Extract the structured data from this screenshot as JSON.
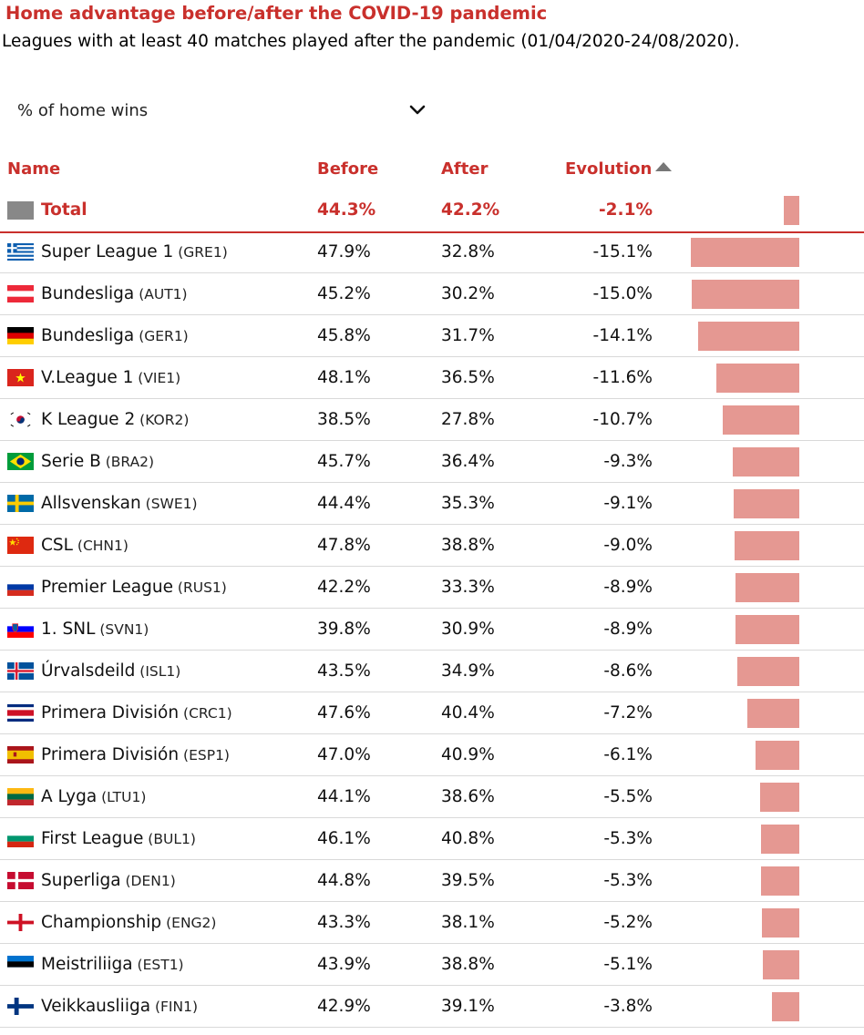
{
  "title": "Home advantage before/after the COVID-19 pandemic",
  "subtitle": "Leagues with at least 40 matches played after the pandemic (01/04/2020-24/08/2020).",
  "metric_select": {
    "value": "% of home wins",
    "icon": "chevron-down-icon"
  },
  "colors": {
    "accent": "#c9302c",
    "bar": "#e59892",
    "total_swatch": "#888888"
  },
  "columns": {
    "name": "Name",
    "before": "Before",
    "after": "After",
    "evolution": "Evolution",
    "sort_icon": "sort-ascending-icon"
  },
  "total": {
    "name": "Total",
    "before": "44.3%",
    "after": "42.2%",
    "evolution": "-2.1%"
  },
  "leagues": [
    {
      "flag": "gre",
      "name": "Super League 1",
      "code": "(GRE1)",
      "before": "47.9%",
      "after": "32.8%",
      "evolution": "-15.1%"
    },
    {
      "flag": "aut",
      "name": "Bundesliga",
      "code": "(AUT1)",
      "before": "45.2%",
      "after": "30.2%",
      "evolution": "-15.0%"
    },
    {
      "flag": "ger",
      "name": "Bundesliga",
      "code": "(GER1)",
      "before": "45.8%",
      "after": "31.7%",
      "evolution": "-14.1%"
    },
    {
      "flag": "vie",
      "name": "V.League 1",
      "code": "(VIE1)",
      "before": "48.1%",
      "after": "36.5%",
      "evolution": "-11.6%"
    },
    {
      "flag": "kor",
      "name": "K League 2",
      "code": "(KOR2)",
      "before": "38.5%",
      "after": "27.8%",
      "evolution": "-10.7%"
    },
    {
      "flag": "bra",
      "name": "Serie B",
      "code": "(BRA2)",
      "before": "45.7%",
      "after": "36.4%",
      "evolution": "-9.3%"
    },
    {
      "flag": "swe",
      "name": "Allsvenskan",
      "code": "(SWE1)",
      "before": "44.4%",
      "after": "35.3%",
      "evolution": "-9.1%"
    },
    {
      "flag": "chn",
      "name": "CSL",
      "code": "(CHN1)",
      "before": "47.8%",
      "after": "38.8%",
      "evolution": "-9.0%"
    },
    {
      "flag": "rus",
      "name": "Premier League",
      "code": "(RUS1)",
      "before": "42.2%",
      "after": "33.3%",
      "evolution": "-8.9%"
    },
    {
      "flag": "svn",
      "name": "1. SNL",
      "code": "(SVN1)",
      "before": "39.8%",
      "after": "30.9%",
      "evolution": "-8.9%"
    },
    {
      "flag": "isl",
      "name": "Úrvalsdeild",
      "code": "(ISL1)",
      "before": "43.5%",
      "after": "34.9%",
      "evolution": "-8.6%"
    },
    {
      "flag": "crc",
      "name": "Primera División",
      "code": "(CRC1)",
      "before": "47.6%",
      "after": "40.4%",
      "evolution": "-7.2%"
    },
    {
      "flag": "esp",
      "name": "Primera División",
      "code": "(ESP1)",
      "before": "47.0%",
      "after": "40.9%",
      "evolution": "-6.1%"
    },
    {
      "flag": "ltu",
      "name": "A Lyga",
      "code": "(LTU1)",
      "before": "44.1%",
      "after": "38.6%",
      "evolution": "-5.5%"
    },
    {
      "flag": "bul",
      "name": "First League",
      "code": "(BUL1)",
      "before": "46.1%",
      "after": "40.8%",
      "evolution": "-5.3%"
    },
    {
      "flag": "den",
      "name": "Superliga",
      "code": "(DEN1)",
      "before": "44.8%",
      "after": "39.5%",
      "evolution": "-5.3%"
    },
    {
      "flag": "eng",
      "name": "Championship",
      "code": "(ENG2)",
      "before": "43.3%",
      "after": "38.1%",
      "evolution": "-5.2%"
    },
    {
      "flag": "est",
      "name": "Meistriliiga",
      "code": "(EST1)",
      "before": "43.9%",
      "after": "38.8%",
      "evolution": "-5.1%"
    },
    {
      "flag": "fin",
      "name": "Veikkausliiga",
      "code": "(FIN1)",
      "before": "42.9%",
      "after": "39.1%",
      "evolution": "-3.8%"
    }
  ],
  "chart_data": {
    "type": "bar",
    "orientation": "horizontal",
    "metric": "% of home wins",
    "categories": [
      "Total",
      "Super League 1 (GRE1)",
      "Bundesliga (AUT1)",
      "Bundesliga (GER1)",
      "V.League 1 (VIE1)",
      "K League 2 (KOR2)",
      "Serie B (BRA2)",
      "Allsvenskan (SWE1)",
      "CSL (CHN1)",
      "Premier League (RUS1)",
      "1. SNL (SVN1)",
      "Úrvalsdeild (ISL1)",
      "Primera División (CRC1)",
      "Primera División (ESP1)",
      "A Lyga (LTU1)",
      "First League (BUL1)",
      "Superliga (DEN1)",
      "Championship (ENG2)",
      "Meistriliiga (EST1)",
      "Veikkausliiga (FIN1)"
    ],
    "before": [
      44.3,
      47.9,
      45.2,
      45.8,
      48.1,
      38.5,
      45.7,
      44.4,
      47.8,
      42.2,
      39.8,
      43.5,
      47.6,
      47.0,
      44.1,
      46.1,
      44.8,
      43.3,
      43.9,
      42.9
    ],
    "after": [
      42.2,
      32.8,
      30.2,
      31.7,
      36.5,
      27.8,
      36.4,
      35.3,
      38.8,
      33.3,
      30.9,
      34.9,
      40.4,
      40.9,
      38.6,
      40.8,
      39.5,
      38.1,
      38.8,
      39.1
    ],
    "values": [
      -2.1,
      -15.1,
      -15.0,
      -14.1,
      -11.6,
      -10.7,
      -9.3,
      -9.1,
      -9.0,
      -8.9,
      -8.9,
      -8.6,
      -7.2,
      -6.1,
      -5.5,
      -5.3,
      -5.3,
      -5.2,
      -5.1,
      -3.8
    ],
    "sorted_by": "Evolution",
    "sort_order": "ascending",
    "bars_extend": "leftward from right anchor"
  }
}
